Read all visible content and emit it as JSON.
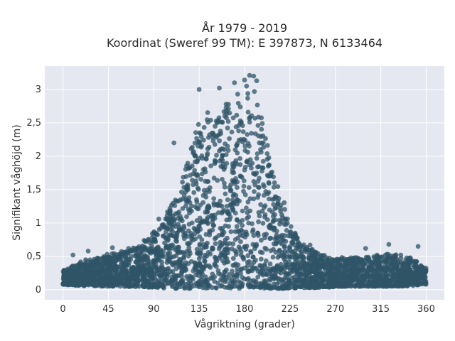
{
  "chart_data": {
    "type": "scatter",
    "title": "År 1979 - 2019",
    "subtitle": "Koordinat (Sweref 99 TM): E 397873, N 6133464",
    "xlabel": "Vågriktning (grader)",
    "ylabel": "Signifikant våghöjd (m)",
    "xlim": [
      -18,
      378
    ],
    "ylim": [
      -0.15,
      3.35
    ],
    "x_ticks": [
      0,
      45,
      90,
      135,
      180,
      225,
      270,
      315,
      360
    ],
    "x_tick_labels": [
      "0",
      "45",
      "90",
      "135",
      "180",
      "225",
      "270",
      "315",
      "360"
    ],
    "y_ticks": [
      0,
      0.5,
      1,
      1.5,
      2,
      2.5,
      3
    ],
    "y_tick_labels": [
      "0",
      "0,5",
      "1",
      "1,5",
      "2",
      "2,5",
      "3"
    ],
    "grid": true,
    "point_color": "#2f5467",
    "background_color": "#e5e8f0",
    "envelope": {
      "description_x": [
        0,
        20,
        45,
        60,
        80,
        95,
        105,
        115,
        125,
        135,
        145,
        155,
        165,
        175,
        185,
        195,
        205,
        215,
        225,
        235,
        250,
        265,
        280,
        300,
        315,
        330,
        345,
        360
      ],
      "upper_limit_y": [
        0.3,
        0.45,
        0.55,
        0.6,
        0.75,
        0.95,
        1.25,
        1.6,
        2.2,
        2.6,
        2.8,
        2.8,
        2.9,
        3.0,
        3.2,
        2.8,
        2.1,
        1.55,
        1.05,
        0.75,
        0.6,
        0.5,
        0.5,
        0.5,
        0.55,
        0.55,
        0.5,
        0.35
      ],
      "lower_limit_y": [
        0.08,
        0.06,
        0.05,
        0.05,
        0.04,
        0.03,
        0.02,
        0.02,
        0.02,
        0.02,
        0.02,
        0.02,
        0.02,
        0.02,
        0.02,
        0.02,
        0.02,
        0.02,
        0.02,
        0.03,
        0.03,
        0.04,
        0.05,
        0.05,
        0.05,
        0.05,
        0.06,
        0.08
      ]
    },
    "outliers": [
      {
        "x": 135,
        "y": 3.0
      },
      {
        "x": 155,
        "y": 3.02
      },
      {
        "x": 170,
        "y": 3.1
      },
      {
        "x": 180,
        "y": 3.14
      },
      {
        "x": 185,
        "y": 3.21
      },
      {
        "x": 189,
        "y": 3.2
      },
      {
        "x": 192,
        "y": 3.13
      },
      {
        "x": 182,
        "y": 3.05
      },
      {
        "x": 110,
        "y": 2.2
      },
      {
        "x": 95,
        "y": 1.06
      },
      {
        "x": 300,
        "y": 0.62
      },
      {
        "x": 323,
        "y": 0.68
      },
      {
        "x": 352,
        "y": 0.65
      },
      {
        "x": 10,
        "y": 0.52
      },
      {
        "x": 25,
        "y": 0.58
      },
      {
        "x": 49,
        "y": 0.63
      },
      {
        "x": 65,
        "y": 0.62
      },
      {
        "x": 245,
        "y": 0.67
      }
    ]
  }
}
